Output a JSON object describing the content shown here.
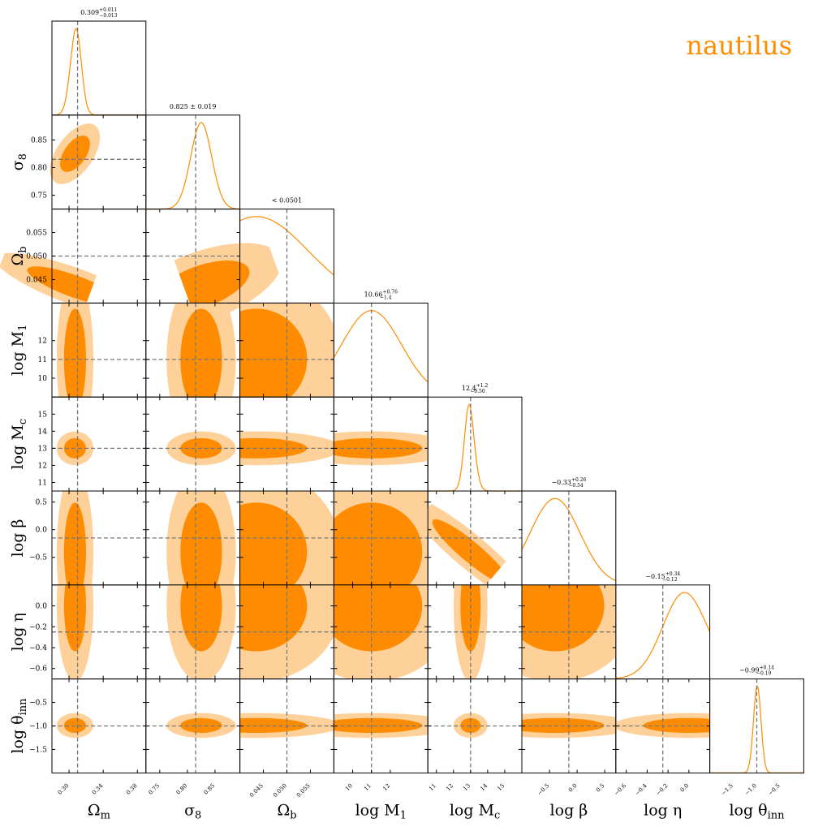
{
  "brand": {
    "label": "nautilus",
    "color": "#ff8c00"
  },
  "colors": {
    "accent": "#ff8c00",
    "light": "#fdd199",
    "truth": "#777777"
  },
  "chart_data": {
    "type": "corner",
    "parameters": [
      {
        "key": "om",
        "label_main": "Ω",
        "label_sub": "m",
        "truth": 0.31,
        "range": [
          0.28,
          0.39
        ],
        "ticks": [
          0.3,
          0.34,
          0.38
        ],
        "tick_labels": [
          "0.30",
          "0.34",
          "0.38"
        ],
        "summary": {
          "main": "0.309",
          "upper": "+0.011",
          "lower": "−0.013"
        },
        "marginal": {
          "mean": 0.307,
          "sd": 0.0065,
          "skew": 0.5
        }
      },
      {
        "key": "s8",
        "label_main": "σ",
        "label_sub": "8",
        "truth": 0.815,
        "range": [
          0.725,
          0.895
        ],
        "ticks": [
          0.75,
          0.8,
          0.85
        ],
        "tick_labels": [
          "0.75",
          "0.80",
          "0.85"
        ],
        "y_ticks": [
          0.75,
          0.8,
          0.85
        ],
        "y_tick_labels": [
          "0.75",
          "0.80",
          "0.85"
        ],
        "summary": {
          "main": "0.825 ± 0.019"
        },
        "marginal": {
          "mean": 0.825,
          "sd": 0.019,
          "skew": 0.0
        }
      },
      {
        "key": "ob",
        "label_main": "Ω",
        "label_sub": "b",
        "truth": 0.05,
        "range": [
          0.04,
          0.06
        ],
        "ticks": [
          0.045,
          0.05,
          0.055
        ],
        "tick_labels": [
          "0.045",
          "0.050",
          "0.055"
        ],
        "y_ticks": [
          0.045,
          0.05,
          0.055
        ],
        "y_tick_labels": [
          "0.045",
          "0.050",
          "0.055"
        ],
        "summary": {
          "main": "< 0.0501"
        },
        "marginal": {
          "mean": 0.0435,
          "sd": 0.011,
          "skew": 0.0
        }
      },
      {
        "key": "m1",
        "label_main": "log M",
        "label_sub": "1",
        "truth": 11.0,
        "range": [
          9.0,
          14.0
        ],
        "ticks": [
          10,
          11,
          12
        ],
        "tick_labels": [
          "10",
          "11",
          "12"
        ],
        "y_ticks": [
          10,
          11,
          12
        ],
        "y_tick_labels": [
          "10",
          "11",
          "12"
        ],
        "summary": {
          "main": "10.66",
          "upper": "+0.76",
          "lower": "−1.4"
        },
        "marginal": {
          "mean": 11.0,
          "sd": 1.6,
          "skew": 0.0
        }
      },
      {
        "key": "mc",
        "label_main": "log M",
        "label_sub": "c",
        "truth": 13.0,
        "range": [
          10.5,
          16.0
        ],
        "ticks": [
          11,
          12,
          13,
          14,
          15
        ],
        "tick_labels": [
          "11",
          "12",
          "13",
          "14",
          "15"
        ],
        "y_ticks": [
          11,
          12,
          13,
          14,
          15
        ],
        "y_tick_labels": [
          "11",
          "12",
          "13",
          "14",
          "15"
        ],
        "summary": {
          "main": "12.4",
          "upper": "+1.2",
          "lower": "−0.50"
        },
        "marginal": {
          "mean": 13.0,
          "sd": 0.3,
          "skew": -0.8
        }
      },
      {
        "key": "beta",
        "label_main": "log β",
        "label_sub": "",
        "truth": -0.15,
        "range": [
          -1.0,
          0.7
        ],
        "ticks": [
          -0.5,
          0.0,
          0.5
        ],
        "tick_labels": [
          "−0.5",
          "0.0",
          "0.5"
        ],
        "y_ticks": [
          -0.5,
          0.0,
          0.5
        ],
        "y_tick_labels": [
          "−0.5",
          "0.0",
          "0.5"
        ],
        "summary": {
          "main": "−0.33",
          "upper": "+0.26",
          "lower": "−0.54"
        },
        "marginal": {
          "mean": -0.4,
          "sd": 0.45,
          "skew": 0.0
        }
      },
      {
        "key": "eta",
        "label_main": "log η",
        "label_sub": "",
        "truth": -0.25,
        "range": [
          -0.7,
          0.2
        ],
        "ticks": [
          -0.6,
          -0.4,
          -0.2,
          0.0
        ],
        "tick_labels": [
          "−0.6",
          "−0.4",
          "−0.2",
          "0.0"
        ],
        "y_ticks": [
          -0.6,
          -0.4,
          -0.2,
          0.0
        ],
        "y_tick_labels": [
          "−0.6",
          "−0.4",
          "−0.2",
          "0.0"
        ],
        "summary": {
          "main": "−0.15",
          "upper": "+0.34",
          "lower": "−0.12"
        },
        "marginal": {
          "mean": 0.0,
          "sd": 0.22,
          "skew": -0.5
        }
      },
      {
        "key": "theta",
        "label_main": "log θ",
        "label_sub": "inn",
        "truth": -1.0,
        "range": [
          -2.0,
          0.0
        ],
        "ticks": [
          -1.5,
          -1.0,
          -0.5
        ],
        "tick_labels": [
          "−1.5",
          "−1.0",
          "−0.5"
        ],
        "y_ticks": [
          -1.5,
          -1.0,
          -0.5
        ],
        "y_tick_labels": [
          "−1.5",
          "−1.0",
          "−0.5"
        ],
        "summary": {
          "main": "−0.99",
          "upper": "+0.14",
          "lower": "−0.19"
        },
        "marginal": {
          "mean": -0.99,
          "sd": 0.08,
          "skew": 0.0
        }
      }
    ]
  }
}
